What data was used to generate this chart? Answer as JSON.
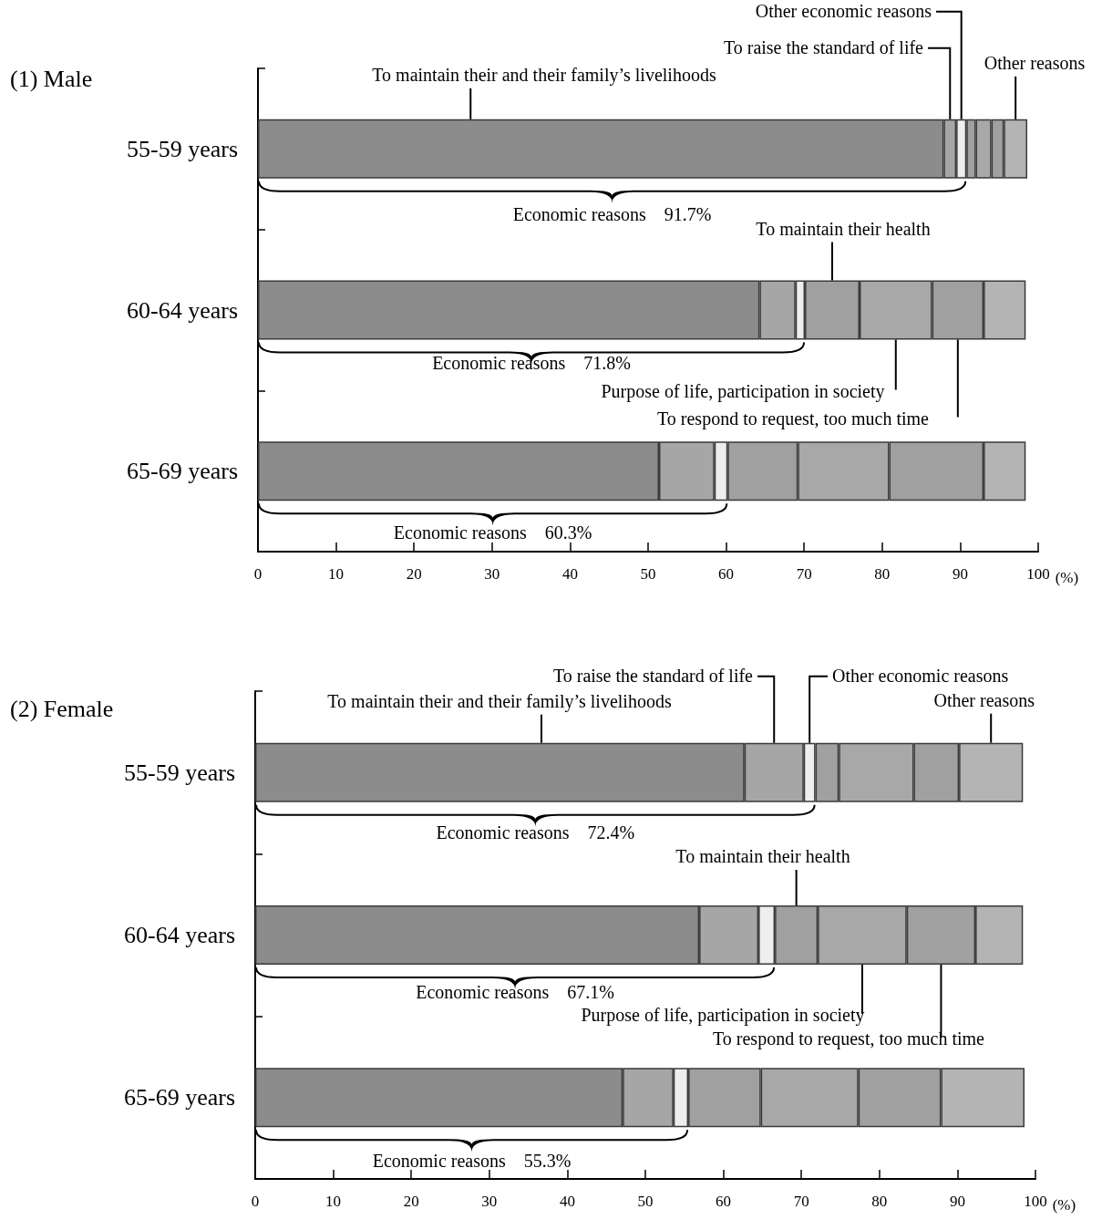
{
  "chart_data": [
    {
      "type": "bar",
      "orientation": "horizontal",
      "stacked": true,
      "title": "(1) Male",
      "xlabel": "(%)",
      "categories": [
        "55-59 years",
        "60-64 years",
        "65-69 years"
      ],
      "xlim": [
        0,
        100
      ],
      "xticks": [
        0,
        10,
        20,
        30,
        40,
        50,
        60,
        70,
        80,
        90,
        100
      ],
      "series": [
        {
          "name": "To maintain their and their family’s livelihoods",
          "color": "#8c8c8c",
          "values": [
            87.9,
            64.3,
            51.4
          ]
        },
        {
          "name": "To raise the standard of life",
          "color": "#a6a6a6",
          "values": [
            1.6,
            4.6,
            7.1
          ]
        },
        {
          "name": "Other economic reasons",
          "color": "#eeeeee",
          "values": [
            1.3,
            1.2,
            1.7
          ]
        },
        {
          "name": "To maintain their health",
          "color": "#a0a0a0",
          "values": [
            1.2,
            7.0,
            9.0
          ]
        },
        {
          "name": "Purpose of life, participation in society",
          "color": "#a8a8a8",
          "values": [
            2.0,
            9.3,
            11.7
          ]
        },
        {
          "name": "To respond to request, too much time",
          "color": "#a0a0a0",
          "values": [
            1.6,
            6.6,
            12.1
          ]
        },
        {
          "name": "Other reasons",
          "color": "#b4b4b4",
          "values": [
            3.0,
            5.4,
            5.4
          ]
        }
      ],
      "annotations": [
        "Economic reasons　91.7%",
        "Economic reasons　71.8%",
        "Economic reasons　60.3%"
      ]
    },
    {
      "type": "bar",
      "orientation": "horizontal",
      "stacked": true,
      "title": "(2) Female",
      "xlabel": "(%)",
      "categories": [
        "55-59 years",
        "60-64 years",
        "65-69 years"
      ],
      "xlim": [
        0,
        100
      ],
      "xticks": [
        0,
        10,
        20,
        30,
        40,
        50,
        60,
        70,
        80,
        90,
        100
      ],
      "series": [
        {
          "name": "To maintain their and their family’s livelihoods",
          "color": "#8c8c8c",
          "values": [
            62.7,
            56.9,
            47.1
          ]
        },
        {
          "name": "To raise the standard of life",
          "color": "#a6a6a6",
          "values": [
            7.6,
            7.6,
            6.5
          ]
        },
        {
          "name": "Other economic reasons",
          "color": "#eeeeee",
          "values": [
            1.5,
            2.1,
            1.9
          ]
        },
        {
          "name": "To maintain their health",
          "color": "#a0a0a0",
          "values": [
            3.0,
            5.5,
            9.3
          ]
        },
        {
          "name": "Purpose of life, participation in society",
          "color": "#a8a8a8",
          "values": [
            9.6,
            11.4,
            12.5
          ]
        },
        {
          "name": "To respond to request, too much time",
          "color": "#a0a0a0",
          "values": [
            5.8,
            8.8,
            10.6
          ]
        },
        {
          "name": "Other reasons",
          "color": "#b4b4b4",
          "values": [
            8.2,
            6.1,
            10.7
          ]
        }
      ],
      "annotations": [
        "Economic reasons　72.4%",
        "Economic reasons　67.1%",
        "Economic reasons　55.3%"
      ]
    }
  ]
}
